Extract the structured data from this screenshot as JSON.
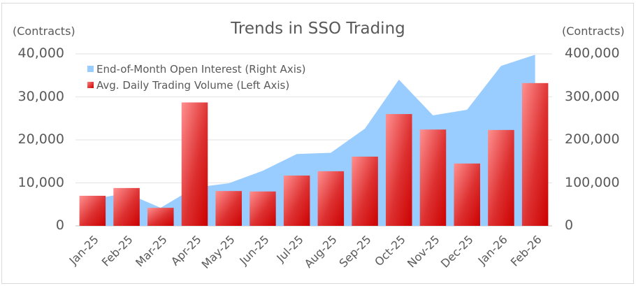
{
  "chart_data": {
    "type": "bar+area",
    "title": "Trends in SSO Trading",
    "left_axis_label": "(Contracts)",
    "right_axis_label": "(Contracts)",
    "categories": [
      "Jan-25",
      "Feb-25",
      "Mar-25",
      "Apr-25",
      "May-25",
      "Jun-25",
      "Jul-25",
      "Aug-25",
      "Sep-25",
      "Oct-25",
      "Nov-25",
      "Dec-25",
      "Jan-26",
      "Feb-26"
    ],
    "series": [
      {
        "name": "End-of-Month Open Interest (Right Axis)",
        "type": "area",
        "axis": "right",
        "color": "#99ccff",
        "values": [
          62000,
          76000,
          42000,
          89000,
          99000,
          128000,
          167000,
          170000,
          226000,
          340000,
          257000,
          270000,
          372000,
          398000
        ]
      },
      {
        "name": "Avg. Daily Trading Volume (Left Axis)",
        "type": "bar",
        "axis": "left",
        "color": "#cc0000",
        "values": [
          7000,
          8800,
          4200,
          28700,
          8100,
          8000,
          11700,
          12700,
          16100,
          26000,
          22400,
          14500,
          22300,
          33200
        ]
      }
    ],
    "left_ylim": [
      0,
      40000
    ],
    "right_ylim": [
      0,
      400000
    ],
    "left_ticks": [
      "0",
      "10,000",
      "20,000",
      "30,000",
      "40,000"
    ],
    "right_ticks": [
      "0",
      "100,000",
      "200,000",
      "300,000",
      "400,000"
    ],
    "grid": true,
    "legend_position": "top-left inside"
  }
}
